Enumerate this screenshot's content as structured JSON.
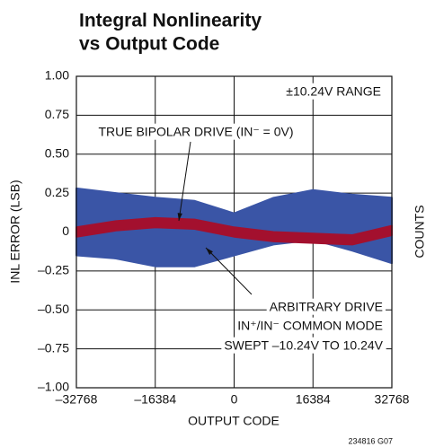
{
  "chart_data": {
    "type": "band",
    "title": [
      "Integral Nonlinearity",
      "vs Output Code"
    ],
    "xlabel": "OUTPUT CODE",
    "ylabel": "INL ERROR (LSB)",
    "y2label": "COUNTS",
    "footnote": "234816 G07",
    "range_note": "±10.24V RANGE",
    "annotations": [
      {
        "lines": [
          "TRUE BIPOLAR DRIVE (IN⁻ = 0V)"
        ]
      },
      {
        "lines": [
          "ARBITRARY DRIVE",
          "IN⁺/IN⁻ COMMON MODE",
          "SWEPT –10.24V TO 10.24V"
        ]
      }
    ],
    "x": [
      -32768,
      -24576,
      -16384,
      -8192,
      0,
      8192,
      16384,
      24576,
      32768
    ],
    "series": [
      {
        "color": "#3a55a6",
        "upper": [
          0.28,
          0.25,
          0.22,
          0.2,
          0.12,
          0.22,
          0.27,
          0.24,
          0.22
        ],
        "lower": [
          -0.15,
          -0.17,
          -0.22,
          -0.22,
          -0.15,
          -0.08,
          -0.05,
          -0.12,
          -0.2
        ]
      },
      {
        "color": "#a3102e",
        "upper": [
          0.03,
          0.07,
          0.09,
          0.08,
          0.03,
          0.0,
          -0.01,
          -0.02,
          0.04
        ],
        "lower": [
          -0.03,
          0.01,
          0.03,
          0.02,
          -0.03,
          -0.06,
          -0.07,
          -0.08,
          -0.02
        ]
      }
    ],
    "xlim": [
      -32768,
      32768
    ],
    "ylim": [
      -1,
      1
    ],
    "xticks": [
      {
        "value": -32768,
        "label": "–32768"
      },
      {
        "value": -16384,
        "label": "–16384"
      },
      0,
      16384,
      32768
    ],
    "yticks": [
      {
        "value": -1,
        "label": "–1.00"
      },
      {
        "value": -0.75,
        "label": "–0.75"
      },
      {
        "value": -0.5,
        "label": "–0.50"
      },
      {
        "value": -0.25,
        "label": "–0.25"
      },
      0,
      0.25,
      {
        "value": 0.5,
        "label": "0.50"
      },
      0.75,
      {
        "value": 1,
        "label": "1.00"
      }
    ],
    "grid": true
  }
}
